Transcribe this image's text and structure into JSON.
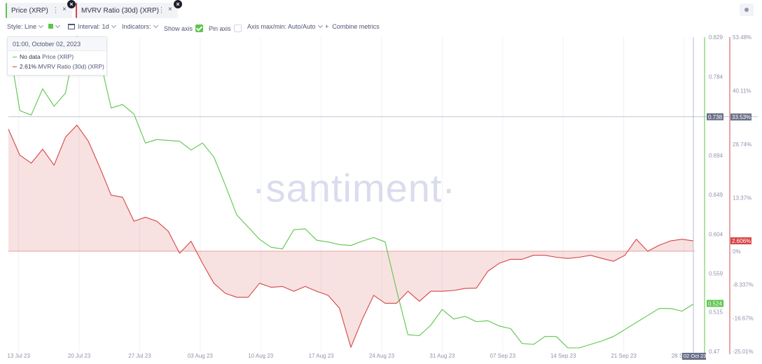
{
  "tabs": [
    {
      "label": "Price (XRP)",
      "color": "#5cc64b"
    },
    {
      "label": "MVRV Ratio (30d) (XRP)",
      "color": "#d64545"
    }
  ],
  "toolbar": {
    "style_label": "Style: Line",
    "interval_label": "Interval: 1d",
    "indicators_label": "Indicators:",
    "show_axis_label": "Show axis",
    "pin_axis_label": "Pin axis",
    "axis_minmax_label": "Axis max/min: Auto/Auto",
    "combine_label": "Combine metrics",
    "plus": "+",
    "show_axis_checked": true,
    "pin_axis_checked": false
  },
  "tooltip": {
    "date": "01:00, October 02, 2023",
    "rows": [
      {
        "value": "No data",
        "name": "Price (XRP)",
        "color": "#5cc64b"
      },
      {
        "value": "2.61%",
        "name": "MVRV Ratio (30d) (XRP)",
        "color": "#d64545"
      }
    ]
  },
  "watermark": "·santiment·",
  "chart_data": {
    "type": "line",
    "x_ticks": [
      "13 Jul 23",
      "20 Jul 23",
      "27 Jul 23",
      "03 Aug 23",
      "10 Aug 23",
      "17 Aug 23",
      "24 Aug 23",
      "31 Aug 23",
      "07 Sep 23",
      "14 Sep 23",
      "21 Sep 23",
      "28 Sep 23"
    ],
    "x_tick_highlight": "02 Oct 23",
    "price_axis": {
      "ticks": [
        "0.829",
        "0.784",
        "0.739",
        "0.694",
        "0.649",
        "0.604",
        "0.559",
        "0.515",
        "0.47"
      ],
      "min": 0.47,
      "max": 0.829,
      "color": "#5cc64b"
    },
    "mvrv_axis": {
      "ticks": [
        "53.48%",
        "40.11%",
        "26.74%",
        "13.37%",
        "0%",
        "-8.337%",
        "-16.67%",
        "-25.01%"
      ],
      "min": -25.01,
      "max": 53.48,
      "color": "#d64545"
    },
    "highlights": {
      "price_hover": "0.738",
      "mvrv_hover": "33.53%",
      "price_last": "0.524",
      "mvrv_last": "2.606%"
    },
    "series": [
      {
        "name": "Price (XRP)",
        "color": "#5cc64b",
        "values": [
          0.825,
          0.745,
          0.74,
          0.77,
          0.75,
          0.765,
          0.83,
          0.813,
          0.805,
          0.748,
          0.752,
          0.741,
          0.708,
          0.712,
          0.711,
          0.71,
          0.7,
          0.708,
          0.692,
          0.66,
          0.626,
          0.612,
          0.598,
          0.589,
          0.587,
          0.609,
          0.61,
          0.597,
          0.595,
          0.592,
          0.591,
          0.596,
          0.6,
          0.595,
          0.54,
          0.489,
          0.488,
          0.5,
          0.518,
          0.507,
          0.51,
          0.504,
          0.505,
          0.499,
          0.496,
          0.479,
          0.478,
          0.487,
          0.487,
          0.474,
          0.474,
          0.478,
          0.482,
          0.487,
          0.495,
          0.503,
          0.511,
          0.519,
          0.519,
          0.516,
          0.524
        ]
      },
      {
        "name": "MVRV Ratio (30d) (XRP)",
        "color": "#d64545",
        "values": [
          30.5,
          24.0,
          22.0,
          25.5,
          21.5,
          28.5,
          31.5,
          27.5,
          21.0,
          14.0,
          13.5,
          7.5,
          8.5,
          7.5,
          5.0,
          -0.5,
          2.5,
          -3.0,
          -8.0,
          -10.5,
          -11.5,
          -11.5,
          -8.0,
          -9.0,
          -8.8,
          -10.0,
          -8.8,
          -10.0,
          -11.0,
          -14.2,
          -24.0,
          -17.0,
          -11.0,
          -13.0,
          -13.0,
          -10.0,
          -12.5,
          -10.0,
          -10.0,
          -9.8,
          -9.3,
          -9.2,
          -5.0,
          -3.0,
          -2.0,
          -2.0,
          -1.0,
          -1.0,
          -1.5,
          -1.8,
          -1.5,
          -1.0,
          -1.8,
          -2.5,
          -1.0,
          3.0,
          0.0,
          1.5,
          2.6,
          3.0,
          2.6
        ]
      }
    ]
  }
}
